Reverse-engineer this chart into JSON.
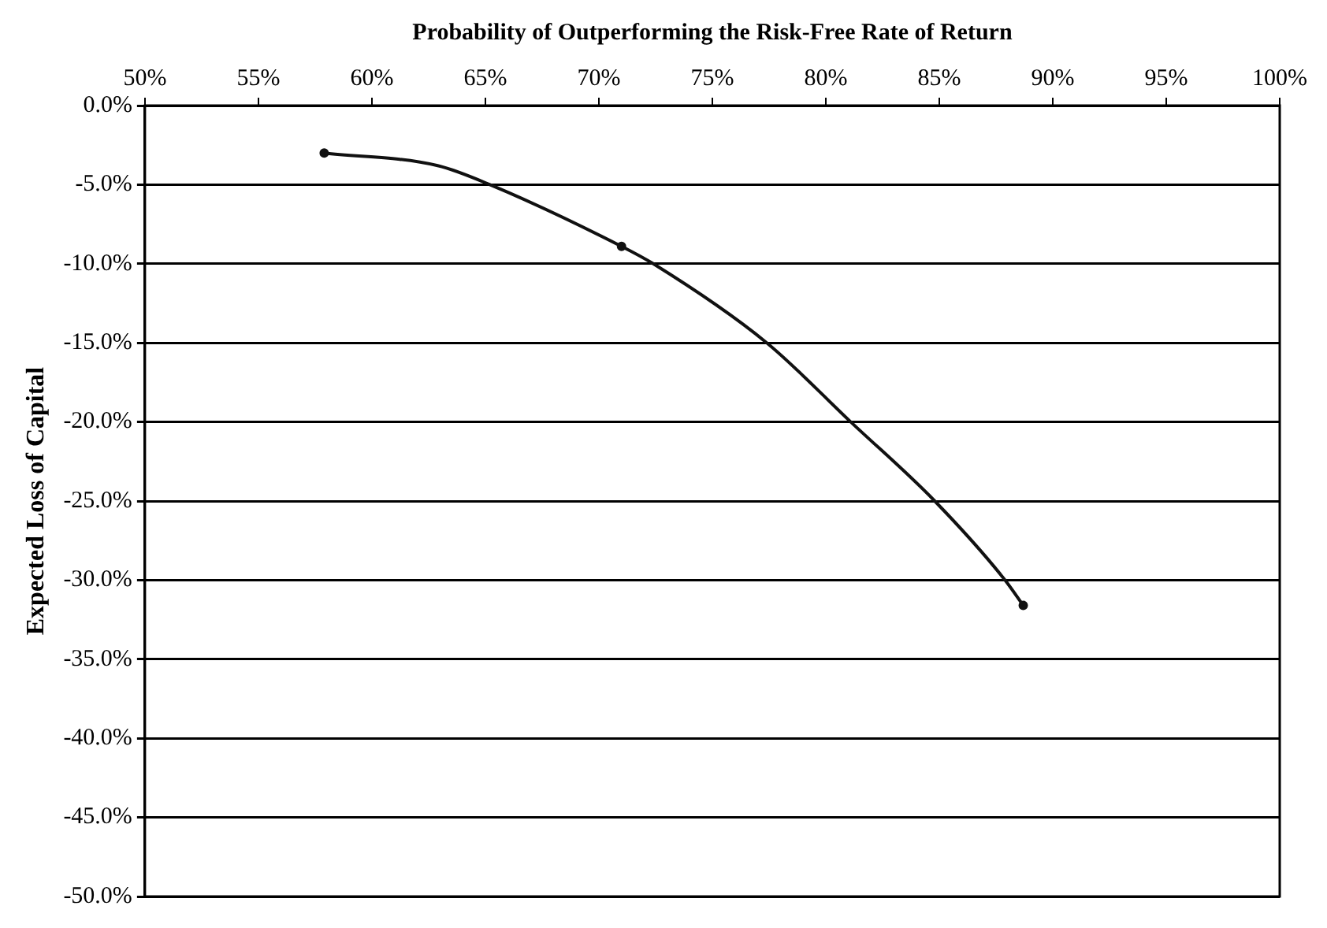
{
  "chart_data": {
    "type": "line",
    "xlabel": "Probability of Outperforming the Risk-Free Rate of Return",
    "ylabel": "Expected Loss of Capital",
    "xlim": [
      50,
      100
    ],
    "ylim": [
      -50,
      0
    ],
    "xticks": [
      {
        "value": 50,
        "label": "50%"
      },
      {
        "value": 55,
        "label": "55%"
      },
      {
        "value": 60,
        "label": "60%"
      },
      {
        "value": 65,
        "label": "65%"
      },
      {
        "value": 70,
        "label": "70%"
      },
      {
        "value": 75,
        "label": "75%"
      },
      {
        "value": 80,
        "label": "80%"
      },
      {
        "value": 85,
        "label": "85%"
      },
      {
        "value": 90,
        "label": "90%"
      },
      {
        "value": 95,
        "label": "95%"
      },
      {
        "value": 100,
        "label": "100%"
      }
    ],
    "yticks": [
      {
        "value": 0,
        "label": "0.0%"
      },
      {
        "value": -5,
        "label": "-5.0%"
      },
      {
        "value": -10,
        "label": "-10.0%"
      },
      {
        "value": -15,
        "label": "-15.0%"
      },
      {
        "value": -20,
        "label": "-20.0%"
      },
      {
        "value": -25,
        "label": "-25.0%"
      },
      {
        "value": -30,
        "label": "-30.0%"
      },
      {
        "value": -35,
        "label": "-35.0%"
      },
      {
        "value": -40,
        "label": "-40.0%"
      },
      {
        "value": -45,
        "label": "-45.0%"
      },
      {
        "value": -50,
        "label": "-50.0%"
      }
    ],
    "grid": "y",
    "legend": false,
    "line_style": "solid",
    "series": [
      {
        "marker": "none",
        "color": "#111111",
        "x": [
          57.9,
          62.9,
          65.2,
          71.0,
          72.4,
          77.4,
          81.1,
          84.8,
          87.9,
          88.7
        ],
        "values": [
          -3.0,
          -3.8,
          -5.0,
          -8.9,
          -10.0,
          -15.0,
          -20.0,
          -25.0,
          -30.0,
          -31.6
        ]
      },
      {
        "type": "scatter",
        "marker": "circle",
        "color": "#111111",
        "x": [
          57.9,
          71.0,
          88.7
        ],
        "values": [
          -3.0,
          -8.9,
          -31.6
        ]
      }
    ]
  }
}
